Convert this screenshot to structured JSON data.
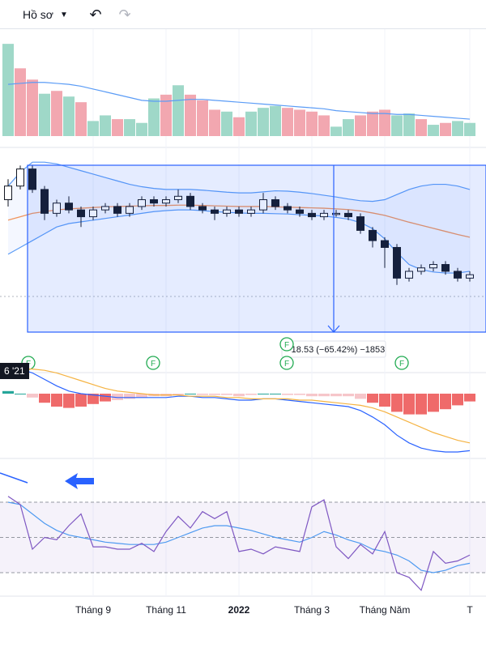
{
  "toolbar": {
    "profile_label": "Hồ sơ",
    "profile_chevron_icon": "chevron-down-icon",
    "undo_icon": "undo-icon",
    "redo_icon": "redo-icon"
  },
  "chart_data": {
    "type": "candlestick",
    "x_axis": {
      "current_date_label": "6 '21",
      "tick_labels": [
        {
          "label": "Tháng 9",
          "index": 7,
          "bold": false
        },
        {
          "label": "Tháng 11",
          "index": 13,
          "bold": false
        },
        {
          "label": "2022",
          "index": 19,
          "bold": true
        },
        {
          "label": "Tháng 3",
          "index": 25,
          "bold": false
        },
        {
          "label": "Tháng Năm",
          "index": 31,
          "bold": false
        },
        {
          "label": "T",
          "index": 38,
          "bold": false
        }
      ]
    },
    "price": {
      "candles": [
        {
          "o": 100,
          "c": 104,
          "h": 106,
          "l": 98
        },
        {
          "o": 104,
          "c": 109,
          "h": 110,
          "l": 103
        },
        {
          "o": 109,
          "c": 103,
          "h": 110,
          "l": 102
        },
        {
          "o": 103,
          "c": 96,
          "h": 104,
          "l": 94
        },
        {
          "o": 96,
          "c": 99,
          "h": 100,
          "l": 95
        },
        {
          "o": 99,
          "c": 97,
          "h": 101,
          "l": 96
        },
        {
          "o": 97,
          "c": 95,
          "h": 98,
          "l": 92
        },
        {
          "o": 95,
          "c": 97,
          "h": 98,
          "l": 94
        },
        {
          "o": 97,
          "c": 98,
          "h": 99,
          "l": 96
        },
        {
          "o": 98,
          "c": 96,
          "h": 99,
          "l": 95
        },
        {
          "o": 96,
          "c": 98,
          "h": 99,
          "l": 95
        },
        {
          "o": 98,
          "c": 100,
          "h": 101,
          "l": 97
        },
        {
          "o": 100,
          "c": 99,
          "h": 101,
          "l": 98
        },
        {
          "o": 99,
          "c": 100,
          "h": 101,
          "l": 98
        },
        {
          "o": 100,
          "c": 101,
          "h": 103,
          "l": 99
        },
        {
          "o": 101,
          "c": 98,
          "h": 102,
          "l": 97
        },
        {
          "o": 98,
          "c": 97,
          "h": 99,
          "l": 96
        },
        {
          "o": 97,
          "c": 96,
          "h": 98,
          "l": 94
        },
        {
          "o": 96,
          "c": 97,
          "h": 98,
          "l": 95
        },
        {
          "o": 97,
          "c": 96,
          "h": 98,
          "l": 95
        },
        {
          "o": 96,
          "c": 97,
          "h": 98,
          "l": 95
        },
        {
          "o": 97,
          "c": 100,
          "h": 102,
          "l": 96
        },
        {
          "o": 100,
          "c": 98,
          "h": 101,
          "l": 97
        },
        {
          "o": 98,
          "c": 97,
          "h": 99,
          "l": 96
        },
        {
          "o": 97,
          "c": 96,
          "h": 98,
          "l": 95
        },
        {
          "o": 96,
          "c": 95,
          "h": 97,
          "l": 94
        },
        {
          "o": 95,
          "c": 96,
          "h": 97,
          "l": 94
        },
        {
          "o": 96,
          "c": 96,
          "h": 97,
          "l": 95
        },
        {
          "o": 96,
          "c": 95,
          "h": 97,
          "l": 94
        },
        {
          "o": 95,
          "c": 91,
          "h": 96,
          "l": 90
        },
        {
          "o": 91,
          "c": 88,
          "h": 92,
          "l": 86
        },
        {
          "o": 88,
          "c": 86,
          "h": 89,
          "l": 80
        },
        {
          "o": 86,
          "c": 77,
          "h": 87,
          "l": 75
        },
        {
          "o": 77,
          "c": 79,
          "h": 80,
          "l": 76
        },
        {
          "o": 79,
          "c": 80,
          "h": 81,
          "l": 78
        },
        {
          "o": 80,
          "c": 81,
          "h": 82,
          "l": 79
        },
        {
          "o": 81,
          "c": 79,
          "h": 82,
          "l": 78
        },
        {
          "o": 79,
          "c": 77,
          "h": 80,
          "l": 76
        },
        {
          "o": 77,
          "c": 78,
          "h": 79,
          "l": 76
        }
      ],
      "ma_line": [
        94,
        95,
        96,
        96.5,
        97,
        97.3,
        97.5,
        97.7,
        97.9,
        98,
        98.1,
        98.2,
        98.3,
        98.3,
        98.4,
        98.4,
        98.3,
        98.2,
        98.1,
        98,
        98,
        98,
        97.9,
        97.8,
        97.7,
        97.6,
        97.5,
        97.3,
        97.1,
        96.7,
        96.1,
        95.4,
        94.4,
        93.4,
        92.5,
        91.6,
        90.7,
        89.8,
        89
      ],
      "bb_upper": [
        104,
        108,
        111,
        111,
        110.5,
        109.5,
        108.5,
        107.5,
        106.5,
        105.5,
        104.5,
        103.8,
        103.3,
        103,
        103,
        103,
        102.8,
        102.5,
        102.2,
        102,
        102,
        102.3,
        102.6,
        102.5,
        102.2,
        101.8,
        101.3,
        100.8,
        100.2,
        99.7,
        99.5,
        100,
        101.5,
        103,
        104,
        104.5,
        104.5,
        104,
        103
      ],
      "bb_lower": [
        84,
        86,
        88,
        90,
        92,
        93,
        93.5,
        94,
        94.5,
        95,
        95.5,
        96,
        96.5,
        96.8,
        97,
        97,
        96.8,
        96.5,
        96.3,
        96.1,
        96,
        96,
        95.9,
        95.8,
        95.6,
        95.4,
        95.2,
        94.8,
        94.3,
        93.3,
        91.5,
        88.5,
        84.5,
        81,
        79.5,
        78.8,
        78.5,
        78.5,
        79
      ]
    },
    "measurement": {
      "label": "-18.53 (−65.42%) −1853"
    },
    "event_markers": [
      "F",
      "F",
      "F",
      "F",
      "F"
    ],
    "volume": {
      "bars": [
        {
          "v": 98,
          "up": true
        },
        {
          "v": 72,
          "up": false
        },
        {
          "v": 60,
          "up": false
        },
        {
          "v": 45,
          "up": true
        },
        {
          "v": 48,
          "up": false
        },
        {
          "v": 42,
          "up": true
        },
        {
          "v": 36,
          "up": false
        },
        {
          "v": 16,
          "up": true
        },
        {
          "v": 22,
          "up": true
        },
        {
          "v": 18,
          "up": false
        },
        {
          "v": 18,
          "up": true
        },
        {
          "v": 14,
          "up": true
        },
        {
          "v": 40,
          "up": true
        },
        {
          "v": 44,
          "up": false
        },
        {
          "v": 54,
          "up": true
        },
        {
          "v": 44,
          "up": false
        },
        {
          "v": 38,
          "up": false
        },
        {
          "v": 28,
          "up": false
        },
        {
          "v": 26,
          "up": true
        },
        {
          "v": 20,
          "up": false
        },
        {
          "v": 26,
          "up": true
        },
        {
          "v": 30,
          "up": true
        },
        {
          "v": 32,
          "up": true
        },
        {
          "v": 30,
          "up": false
        },
        {
          "v": 28,
          "up": false
        },
        {
          "v": 26,
          "up": false
        },
        {
          "v": 22,
          "up": false
        },
        {
          "v": 10,
          "up": true
        },
        {
          "v": 18,
          "up": true
        },
        {
          "v": 22,
          "up": false
        },
        {
          "v": 26,
          "up": false
        },
        {
          "v": 28,
          "up": false
        },
        {
          "v": 22,
          "up": true
        },
        {
          "v": 24,
          "up": true
        },
        {
          "v": 18,
          "up": false
        },
        {
          "v": 12,
          "up": true
        },
        {
          "v": 14,
          "up": false
        },
        {
          "v": 16,
          "up": true
        },
        {
          "v": 14,
          "up": true
        }
      ],
      "ma": [
        55,
        56,
        57,
        57,
        56,
        55,
        53,
        50,
        47,
        44,
        41,
        38,
        37,
        37,
        38,
        39,
        39,
        38,
        37,
        36,
        35,
        34,
        33,
        32,
        31,
        30,
        29,
        27,
        26,
        25,
        24,
        24,
        23,
        23,
        22,
        21,
        20,
        19,
        18
      ]
    },
    "macd": {
      "line": [
        2,
        1.9,
        1.6,
        1.1,
        0.6,
        0.2,
        0,
        -0.1,
        -0.2,
        -0.3,
        -0.3,
        -0.3,
        -0.3,
        -0.3,
        -0.2,
        -0.2,
        -0.3,
        -0.3,
        -0.4,
        -0.5,
        -0.5,
        -0.4,
        -0.4,
        -0.5,
        -0.6,
        -0.7,
        -0.8,
        -0.9,
        -1,
        -1.3,
        -1.8,
        -2.4,
        -3.2,
        -3.8,
        -4.2,
        -4.4,
        -4.5,
        -4.5,
        -4.4
      ],
      "signal": [
        1.8,
        1.9,
        1.9,
        1.8,
        1.6,
        1.3,
        1,
        0.7,
        0.4,
        0.2,
        0.1,
        0,
        -0.1,
        -0.1,
        -0.1,
        -0.2,
        -0.2,
        -0.2,
        -0.3,
        -0.3,
        -0.4,
        -0.4,
        -0.4,
        -0.4,
        -0.5,
        -0.5,
        -0.6,
        -0.7,
        -0.8,
        -0.9,
        -1.1,
        -1.4,
        -1.8,
        -2.2,
        -2.6,
        -3,
        -3.3,
        -3.6,
        -3.8
      ],
      "hist": [
        0.2,
        0,
        -0.3,
        -0.7,
        -1,
        -1.1,
        -1,
        -0.8,
        -0.6,
        -0.5,
        -0.4,
        -0.3,
        -0.2,
        -0.2,
        -0.1,
        0,
        -0.1,
        -0.1,
        -0.1,
        -0.2,
        -0.1,
        0,
        0,
        -0.1,
        -0.1,
        -0.2,
        -0.2,
        -0.2,
        -0.2,
        -0.4,
        -0.7,
        -1,
        -1.4,
        -1.6,
        -1.6,
        -1.4,
        -1.2,
        -0.9,
        -0.6
      ]
    },
    "oscillator": {
      "band_upper": 80,
      "band_mid": 50,
      "band_lower": 20,
      "line_k": [
        85,
        78,
        40,
        50,
        48,
        60,
        70,
        42,
        42,
        40,
        40,
        45,
        38,
        55,
        68,
        58,
        72,
        66,
        72,
        38,
        40,
        36,
        42,
        40,
        38,
        76,
        82,
        42,
        32,
        44,
        36,
        55,
        20,
        16,
        5,
        38,
        28,
        30,
        35
      ],
      "line_d": [
        80,
        78,
        70,
        62,
        56,
        52,
        50,
        48,
        46,
        45,
        44,
        44,
        44,
        46,
        50,
        54,
        58,
        60,
        60,
        58,
        56,
        53,
        50,
        48,
        46,
        50,
        55,
        52,
        48,
        45,
        40,
        38,
        35,
        30,
        22,
        20,
        22,
        26,
        28
      ]
    }
  }
}
